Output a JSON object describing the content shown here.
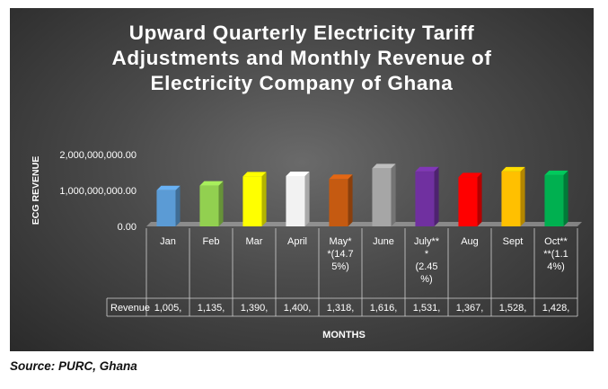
{
  "chart_data": {
    "type": "bar",
    "title_lines": [
      "Upward Quarterly Electricity Tariff",
      "Adjustments and Monthly Revenue of",
      "Electricity Company of Ghana"
    ],
    "ylabel": "ECG REVENUE",
    "xlabel": "MONTHS",
    "ylim": [
      0,
      2000000000
    ],
    "yticks": [
      {
        "value": 0,
        "label": "0.00"
      },
      {
        "value": 1000000000,
        "label": "1,000,000,000.00"
      },
      {
        "value": 2000000000,
        "label": "2,000,000,000.00"
      }
    ],
    "categories": [
      {
        "lines": [
          "Jan"
        ]
      },
      {
        "lines": [
          "Feb"
        ]
      },
      {
        "lines": [
          "Mar"
        ]
      },
      {
        "lines": [
          "April"
        ]
      },
      {
        "lines": [
          "May*",
          "*(14.7",
          "5%)"
        ]
      },
      {
        "lines": [
          "June"
        ]
      },
      {
        "lines": [
          "July**",
          "*",
          "(2.45",
          "%)"
        ]
      },
      {
        "lines": [
          "Aug"
        ]
      },
      {
        "lines": [
          "Sept"
        ]
      },
      {
        "lines": [
          "Oct**",
          "**(1.1",
          "4%)"
        ]
      }
    ],
    "series": [
      {
        "name": "Revenue",
        "values": [
          1005000000,
          1135000000,
          1390000000,
          1400000000,
          1318000000,
          1616000000,
          1531000000,
          1367000000,
          1528000000,
          1428000000
        ],
        "table_labels": [
          "1,005,",
          "1,135,",
          "1,390,",
          "1,400,",
          "1,318,",
          "1,616,",
          "1,531,",
          "1,367,",
          "1,528,",
          "1,428,"
        ],
        "colors": [
          "#5b9bd5",
          "#92d050",
          "#ffff00",
          "#f2f2f2",
          "#c55a11",
          "#a6a6a6",
          "#7030a0",
          "#ff0000",
          "#ffc000",
          "#00b050"
        ]
      }
    ]
  },
  "source": "Source: PURC, Ghana"
}
